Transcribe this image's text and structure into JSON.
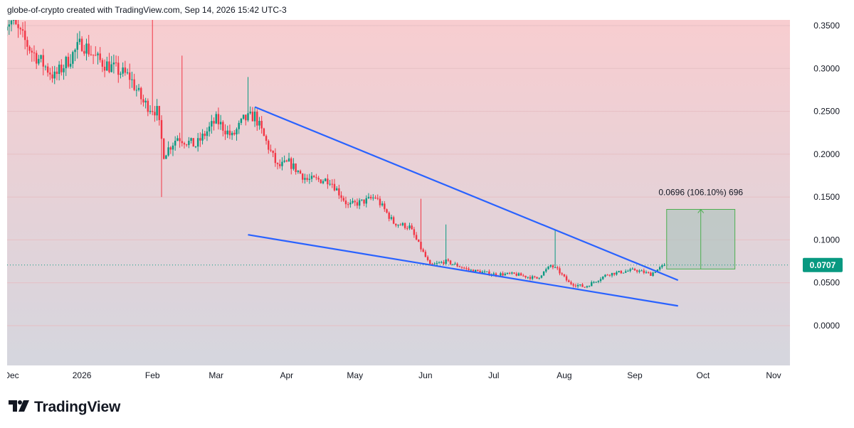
{
  "header": {
    "attribution": "globe-of-crypto created with TradingView.com, Sep 14, 2026 15:42 UTC-3"
  },
  "footer": {
    "brand": "TradingView",
    "logo_icon": "tradingview-logo-icon"
  },
  "colors": {
    "bg_top": "#f8cdd0",
    "bg_bottom": "#d5d6de",
    "up": "#089981",
    "down": "#f23645",
    "trendline": "#2962ff",
    "measure_fill": "#b6c6c2",
    "measure_line": "#4caf50",
    "price_tag": "#089981"
  },
  "chart_data": {
    "type": "candlestick",
    "title": "",
    "xlabel": "",
    "ylabel": "",
    "ylim": [
      -0.05,
      0.36
    ],
    "y_ticks": [
      "0.3500",
      "0.3000",
      "0.2500",
      "0.2000",
      "0.1500",
      "0.1000",
      "0.0500",
      "0.0000"
    ],
    "y_tick_values": [
      0.35,
      0.3,
      0.25,
      0.2,
      0.15,
      0.1,
      0.05,
      0.0
    ],
    "x_ticks": [
      "Dec",
      "2026",
      "Feb",
      "Mar",
      "Apr",
      "May",
      "Jun",
      "Jul",
      "Aug",
      "Sep",
      "Oct",
      "Nov"
    ],
    "x_tick_dates": [
      "2025-12-01",
      "2026-01-01",
      "2026-02-01",
      "2026-03-01",
      "2026-04-01",
      "2026-05-01",
      "2026-06-01",
      "2026-07-01",
      "2026-08-01",
      "2026-09-01",
      "2026-10-01",
      "2026-11-01"
    ],
    "last_price": "0.0707",
    "last_price_value": 0.0707,
    "grid": true,
    "series": [
      {
        "kind": "close",
        "dates": [
          "2025-12-01",
          "2025-12-10",
          "2025-12-20",
          "2026-01-01",
          "2026-01-08",
          "2026-01-15",
          "2026-01-22",
          "2026-01-28",
          "2026-02-03",
          "2026-02-06",
          "2026-02-12",
          "2026-02-20",
          "2026-03-01",
          "2026-03-08",
          "2026-03-13",
          "2026-03-18",
          "2026-03-22",
          "2026-03-28",
          "2026-04-02",
          "2026-04-10",
          "2026-04-20",
          "2026-04-28",
          "2026-05-05",
          "2026-05-10",
          "2026-05-18",
          "2026-05-25",
          "2026-06-01",
          "2026-06-03",
          "2026-06-10",
          "2026-06-20",
          "2026-07-01",
          "2026-07-10",
          "2026-07-20",
          "2026-07-26",
          "2026-07-29",
          "2026-08-03",
          "2026-08-10",
          "2026-08-20",
          "2026-09-01",
          "2026-09-08",
          "2026-09-14"
        ],
        "values": [
          0.355,
          0.32,
          0.29,
          0.33,
          0.31,
          0.3,
          0.29,
          0.26,
          0.25,
          0.2,
          0.22,
          0.21,
          0.24,
          0.22,
          0.24,
          0.245,
          0.22,
          0.185,
          0.19,
          0.17,
          0.17,
          0.14,
          0.145,
          0.15,
          0.12,
          0.115,
          0.08,
          0.07,
          0.075,
          0.065,
          0.06,
          0.06,
          0.055,
          0.07,
          0.065,
          0.05,
          0.045,
          0.06,
          0.065,
          0.06,
          0.0707
        ]
      },
      {
        "kind": "trendline",
        "points": [
          {
            "x": "2026-03-18",
            "y": 0.255
          },
          {
            "x": "2026-09-20",
            "y": 0.053
          }
        ]
      },
      {
        "kind": "trendline",
        "points": [
          {
            "x": "2026-03-15",
            "y": 0.106
          },
          {
            "x": "2026-09-20",
            "y": 0.023
          }
        ]
      }
    ],
    "annotations": [
      {
        "kind": "price-range-measure",
        "label": "0.0696 (106.10%) 696",
        "from": {
          "x": "2026-09-15",
          "y": 0.066
        },
        "to": {
          "x": "2026-10-15",
          "y": 0.1356
        }
      }
    ]
  }
}
